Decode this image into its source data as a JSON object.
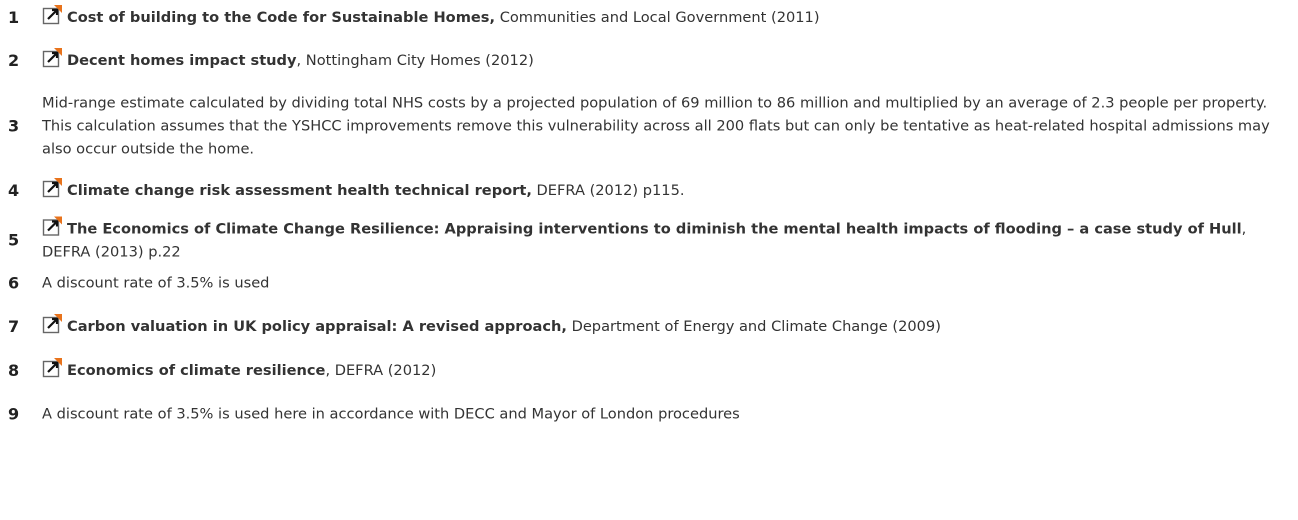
{
  "notes": [
    {
      "number": "1",
      "title": "Cost of building to the Code for Sustainable Homes,",
      "text": "Communities and Local Government (2011)"
    },
    {
      "number": "2",
      "title": "Decent homes impact study",
      "text": ", Nottingham City Homes (2012)"
    },
    {
      "number": "3",
      "text": "Mid-range estimate calculated by dividing total NHS costs by a projected population of 69 million to 86 million and multiplied by an average of 2.3 people per property. This calculation assumes that the YSHCC improvements remove this vulnerability across all 200 flats but can only be tentative as heat-related hospital admissions may also occur outside the home."
    },
    {
      "number": "4",
      "title": "Climate change risk assessment health technical report,",
      "text": "DEFRA (2012) p115."
    },
    {
      "number": "5",
      "title": "The Economics of Climate Change Resilience: Appraising interventions to diminish the mental health impacts of flooding – a case study of Hull",
      "text": ", DEFRA (2013) p.22"
    },
    {
      "number": "6",
      "text": "A discount rate of 3.5% is used"
    },
    {
      "number": "7",
      "title": "Carbon valuation in UK policy appraisal: A revised approach,",
      "text": "Department of Energy and Climate Change (2009)"
    },
    {
      "number": "8",
      "title": "Economics of climate resilience",
      "text": ", DEFRA (2012)"
    },
    {
      "number": "9",
      "text": "A discount rate of 3.5% is used here in accordance with DECC and Mayor of London procedures"
    }
  ]
}
